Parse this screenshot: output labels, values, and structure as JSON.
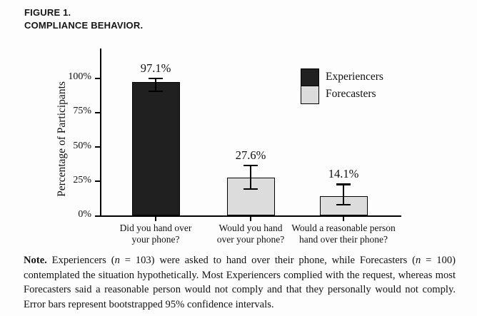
{
  "figure": {
    "label": "FIGURE 1.",
    "title": "COMPLIANCE BEHAVIOR."
  },
  "chart_data": {
    "type": "bar",
    "title": "",
    "xlabel": "",
    "ylabel": "Percentage of Participants",
    "ylim": [
      0,
      100
    ],
    "grid": false,
    "legend_position": "upper right",
    "y_ticks": [
      {
        "value": 0,
        "label": "0%"
      },
      {
        "value": 25,
        "label": "25%"
      },
      {
        "value": 50,
        "label": "50%"
      },
      {
        "value": 75,
        "label": "75%"
      },
      {
        "value": 100,
        "label": "100%"
      }
    ],
    "categories": [
      "Did you hand over your phone?",
      "Would you hand over your phone?",
      "Would a reasonable person hand over their phone?"
    ],
    "values": [
      97.1,
      27.6,
      14.1
    ],
    "bars": [
      {
        "category_lines": [
          "Did you hand over",
          "your phone?"
        ],
        "group": "Experiencers",
        "value": 97.1,
        "display_label": "97.1%",
        "ci_low": 90.2,
        "ci_high": 99.5
      },
      {
        "category_lines": [
          "Would you hand",
          "over your phone?"
        ],
        "group": "Forecasters",
        "value": 27.6,
        "display_label": "27.6%",
        "ci_low": 19.2,
        "ci_high": 36.3
      },
      {
        "category_lines": [
          "Would a reasonable person",
          "hand over their phone?"
        ],
        "group": "Forecasters",
        "value": 14.1,
        "display_label": "14.1%",
        "ci_low": 7.8,
        "ci_high": 22.6
      }
    ],
    "legend": [
      {
        "label": "Experiencers",
        "color": "#202020"
      },
      {
        "label": "Forecasters",
        "color": "#dcdcdc"
      }
    ]
  },
  "note": {
    "parts": [
      {
        "text": "Note.",
        "bold": true
      },
      {
        "text": " Experiencers ("
      },
      {
        "text": "n",
        "italic": true
      },
      {
        "text": " = 103) were asked to hand over their phone, while Forecasters ("
      },
      {
        "text": "n",
        "italic": true
      },
      {
        "text": " = 100) contemplated the situation hypothetically. Most Experiencers complied with the request, whereas most Forecasters said a reasonable person would not comply and that they personally would not comply. Error bars represent bootstrapped 95% confidence intervals."
      }
    ]
  }
}
